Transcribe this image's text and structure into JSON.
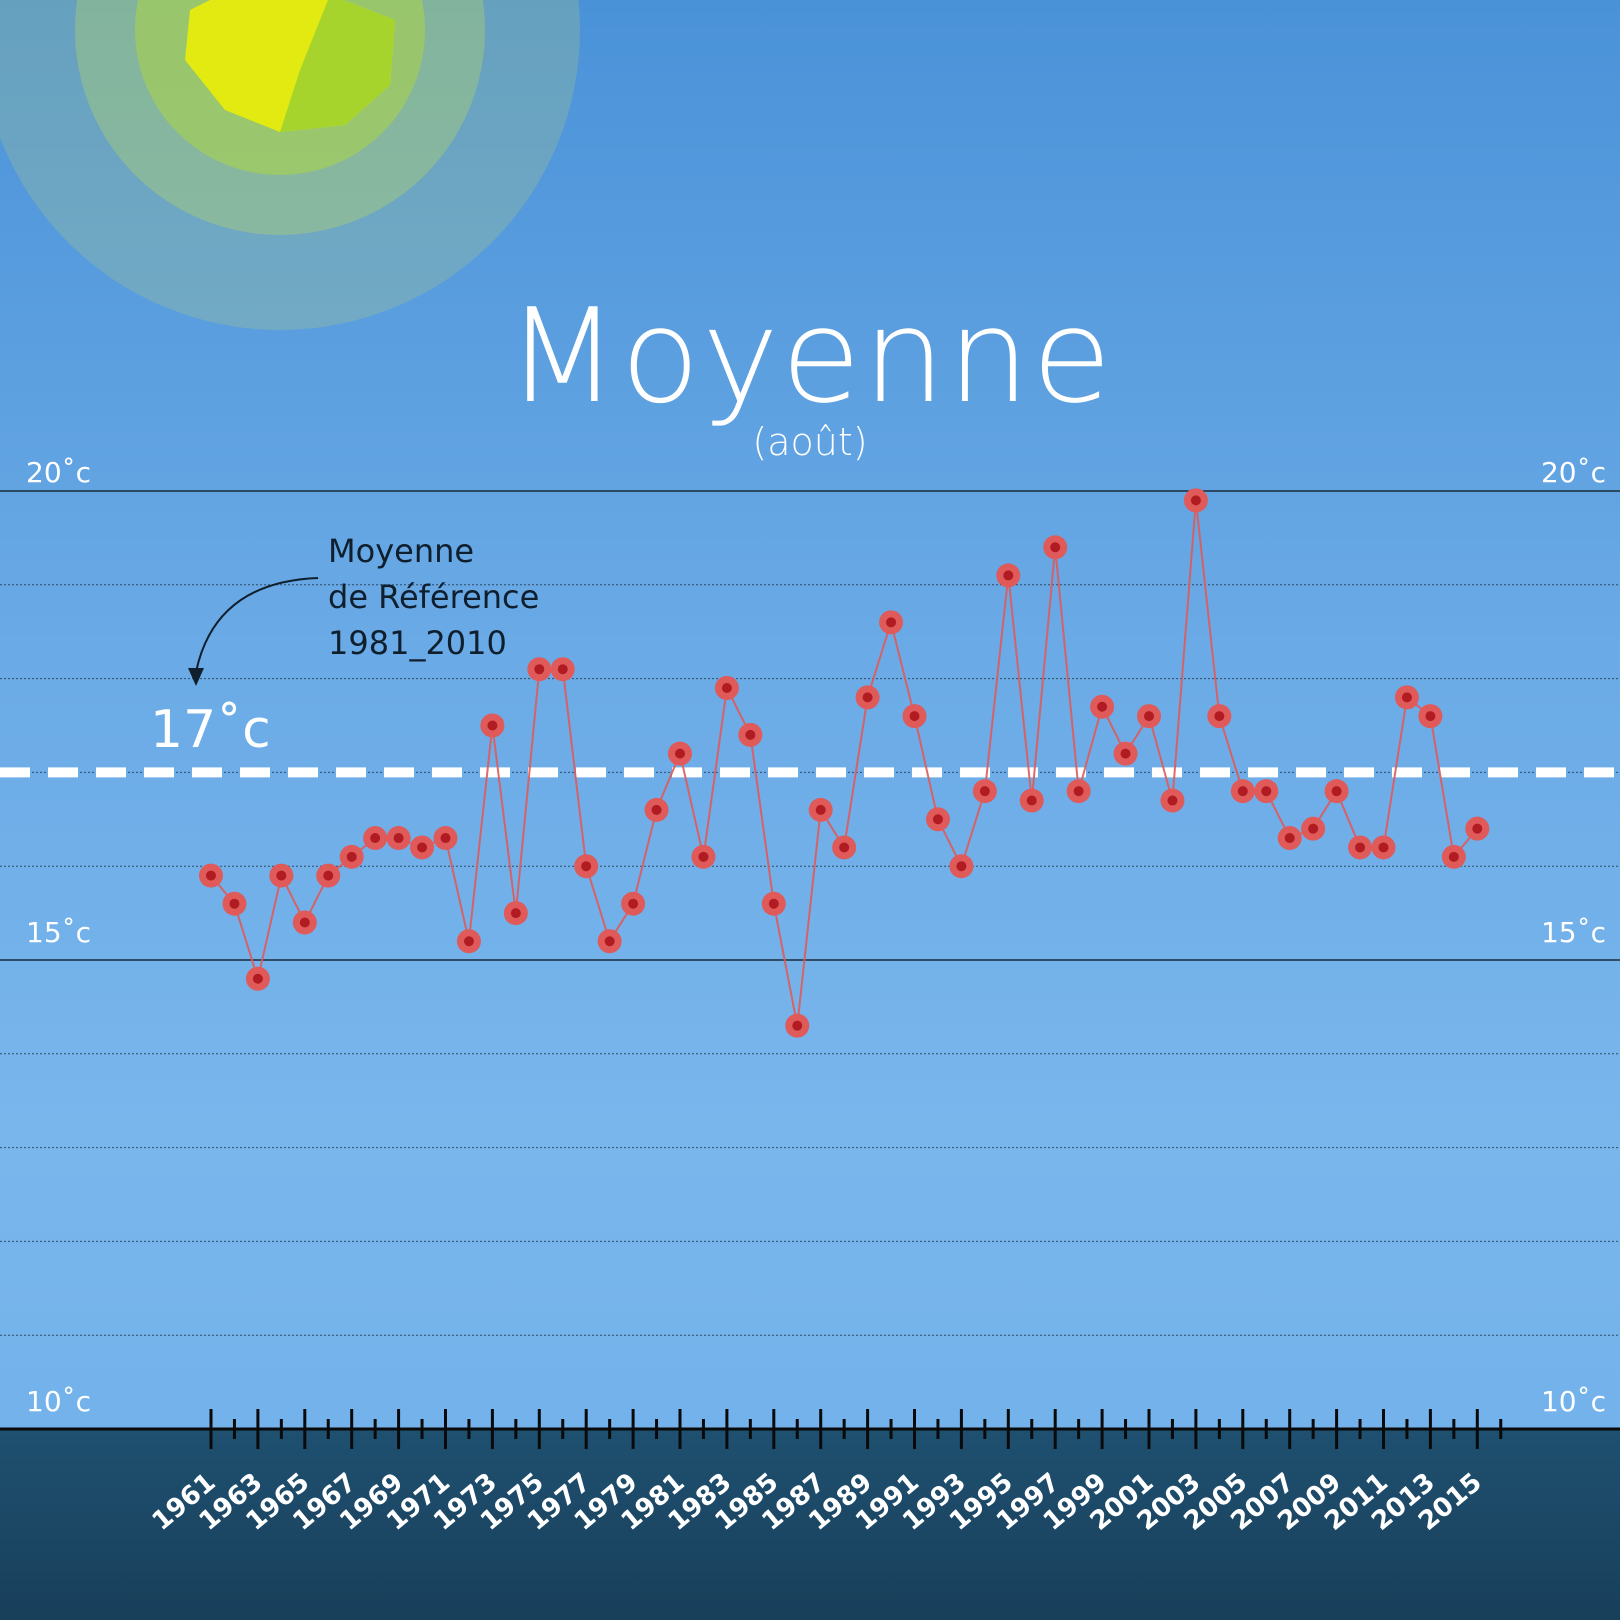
{
  "title": "Moyenne",
  "subtitle": "(août)",
  "y_axis": {
    "labels_left": [
      "20˚c",
      "15˚c",
      "10˚c"
    ],
    "labels_right": [
      "20˚c",
      "15˚c",
      "10˚c"
    ]
  },
  "reference": {
    "lines": [
      "Moyenne",
      "de Référence",
      "1981_2010"
    ],
    "value_label": "17˚c"
  },
  "colors": {
    "background": "#6aaae6",
    "footer": "#1b4763",
    "series": "#e05a5a",
    "reference_line": "#ffffff",
    "sun_core": "#d8e81a"
  },
  "chart_data": {
    "type": "line",
    "title": "Moyenne",
    "subtitle": "(août)",
    "xlabel": "",
    "ylabel": "",
    "ylim": [
      10,
      20
    ],
    "grid": true,
    "x": [
      1961,
      1962,
      1963,
      1964,
      1965,
      1966,
      1967,
      1968,
      1969,
      1970,
      1971,
      1972,
      1973,
      1974,
      1975,
      1976,
      1977,
      1978,
      1979,
      1980,
      1981,
      1982,
      1983,
      1984,
      1985,
      1986,
      1987,
      1988,
      1989,
      1990,
      1991,
      1992,
      1993,
      1994,
      1995,
      1996,
      1997,
      1998,
      1999,
      2000,
      2001,
      2002,
      2003,
      2004,
      2005,
      2006,
      2007,
      2008,
      2009,
      2010,
      2011,
      2012,
      2013,
      2014,
      2015,
      2016
    ],
    "x_tick_labels": [
      "1961",
      "1963",
      "1965",
      "1967",
      "1969",
      "1971",
      "1973",
      "1975",
      "1977",
      "1979",
      "1981",
      "1983",
      "1985",
      "1987",
      "1989",
      "1991",
      "1993",
      "1995",
      "1997",
      "1999",
      "2001",
      "2003",
      "2005",
      "2007",
      "2009",
      "2011",
      "2013",
      "2015"
    ],
    "series": [
      {
        "values": [
          15.9,
          15.6,
          14.8,
          15.9,
          15.4,
          15.9,
          16.1,
          16.3,
          16.3,
          16.2,
          16.3,
          15.2,
          17.5,
          15.5,
          18.1,
          18.1,
          16.0,
          15.2,
          15.6,
          16.6,
          17.2,
          16.1,
          17.9,
          17.4,
          15.6,
          14.3,
          16.6,
          16.2,
          17.8,
          18.6,
          17.6,
          16.5,
          16.0,
          16.8,
          19.1,
          16.7,
          19.4,
          16.8,
          17.7,
          17.2,
          17.6,
          16.7,
          19.9,
          17.6,
          16.8,
          16.8,
          16.3,
          16.4,
          16.8,
          16.2,
          16.2,
          17.8,
          17.6,
          16.1,
          16.4,
          null
        ]
      }
    ],
    "reference_line": {
      "value": 17,
      "label": "17˚c"
    }
  }
}
